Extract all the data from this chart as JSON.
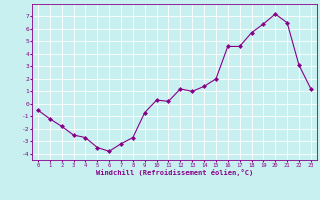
{
  "x": [
    0,
    1,
    2,
    3,
    4,
    5,
    6,
    7,
    8,
    9,
    10,
    11,
    12,
    13,
    14,
    15,
    16,
    17,
    18,
    19,
    20,
    21,
    22,
    23
  ],
  "y": [
    -0.5,
    -1.2,
    -1.8,
    -2.5,
    -2.7,
    -3.5,
    -3.8,
    -3.2,
    -2.7,
    -0.7,
    0.3,
    0.2,
    1.2,
    1.0,
    1.4,
    2.0,
    4.6,
    4.6,
    5.7,
    6.4,
    7.2,
    6.5,
    3.1,
    1.2
  ],
  "line_color": "#880088",
  "marker": "D",
  "marker_size": 2.0,
  "bg_color": "#c8f0f0",
  "grid_color": "#ffffff",
  "xlabel": "Windchill (Refroidissement éolien,°C)",
  "xlabel_color": "#880088",
  "tick_color": "#880088",
  "ylim": [
    -4.5,
    8.0
  ],
  "xlim": [
    -0.5,
    23.5
  ],
  "yticks": [
    -4,
    -3,
    -2,
    -1,
    0,
    1,
    2,
    3,
    4,
    5,
    6,
    7
  ],
  "xticks": [
    0,
    1,
    2,
    3,
    4,
    5,
    6,
    7,
    8,
    9,
    10,
    11,
    12,
    13,
    14,
    15,
    16,
    17,
    18,
    19,
    20,
    21,
    22,
    23
  ]
}
